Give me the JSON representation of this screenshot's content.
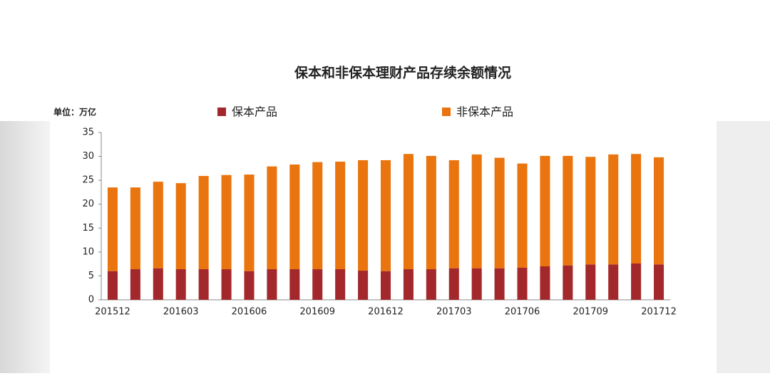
{
  "chart_data": {
    "type": "stacked_bar",
    "title": "保本和非保本理财产品存续余额情况",
    "y_unit": "单位：万亿",
    "categories": [
      "201512",
      null,
      null,
      "201603",
      null,
      null,
      "201606",
      null,
      null,
      "201609",
      null,
      null,
      "201612",
      null,
      null,
      "201703",
      null,
      null,
      "201706",
      null,
      null,
      "201709",
      null,
      null,
      "201712"
    ],
    "series": [
      {
        "name": "保本产品",
        "color": "#a3282b",
        "values": [
          6.0,
          6.4,
          6.6,
          6.4,
          6.4,
          6.4,
          6.0,
          6.4,
          6.4,
          6.4,
          6.4,
          6.1,
          6.0,
          6.4,
          6.4,
          6.6,
          6.6,
          6.6,
          6.7,
          7.0,
          7.2,
          7.4,
          7.4,
          7.6,
          7.4
        ]
      },
      {
        "name": "非保本产品",
        "color": "#ea740e",
        "values": [
          17.5,
          17.1,
          18.1,
          18.0,
          19.5,
          19.7,
          20.2,
          21.5,
          21.9,
          22.4,
          22.5,
          23.1,
          23.2,
          24.1,
          23.7,
          22.6,
          23.8,
          23.1,
          21.8,
          23.1,
          22.9,
          22.5,
          23.0,
          22.9,
          22.4
        ]
      }
    ],
    "ylim": [
      0,
      35
    ],
    "yticks": [
      0,
      5,
      10,
      15,
      20,
      25,
      30,
      35
    ],
    "legend": "top"
  }
}
